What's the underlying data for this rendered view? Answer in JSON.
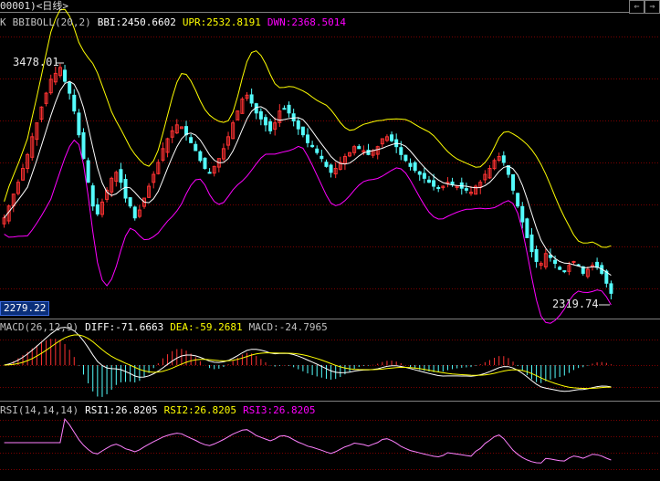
{
  "window": {
    "title": "00001)<日线>"
  },
  "nav_buttons": [
    {
      "label": "⇐",
      "icon": "arrow-left-icon"
    },
    {
      "label": "⇒",
      "icon": "arrow-right-icon"
    }
  ],
  "boll_panel": {
    "prefix": "K",
    "name": "BBIBOLL(20,2)",
    "bbi": "BBI:2450.6602",
    "upr": "UPR:2532.8191",
    "dwn": "DWN:2368.5014",
    "high_label": "3478.01",
    "low_label": "2319.74",
    "current_price": "2279.22"
  },
  "macd_panel": {
    "name": "MACD(26,12,9)",
    "diff": "DIFF:-71.6663",
    "dea": "DEA:-59.2681",
    "macd": "MACD:-24.7965"
  },
  "rsi_panel": {
    "name": "RSI(14,14,14)",
    "rsi1": "RSI1:26.8205",
    "rsi2": "RSI2:26.8205",
    "rsi3": "RSI3:26.8205"
  },
  "colors": {
    "up": "#ff3232",
    "down": "#54fcfc",
    "bbi": "#ffffff",
    "upr": "#ffff00",
    "dwn": "#ff00ff",
    "diff": "#ffffff",
    "dea": "#ffff00",
    "rsi": "#ff80ff",
    "grid": "#7a0000"
  },
  "chart_data": {
    "type": "candlestick",
    "title": "00001)<日线>",
    "ylim": [
      2279.22,
      3478.01
    ],
    "close_approx": [
      2700,
      2760,
      2820,
      2880,
      2950,
      3020,
      3110,
      3180,
      3260,
      3330,
      3400,
      3430,
      3460,
      3390,
      3330,
      3240,
      3120,
      3000,
      2880,
      2760,
      2720,
      2780,
      2840,
      2900,
      2930,
      2880,
      2800,
      2760,
      2700,
      2740,
      2800,
      2860,
      2920,
      2980,
      3050,
      3100,
      3140,
      3170,
      3160,
      3120,
      3080,
      3040,
      2990,
      2950,
      2930,
      2960,
      3000,
      3050,
      3110,
      3180,
      3240,
      3300,
      3320,
      3280,
      3230,
      3200,
      3170,
      3140,
      3180,
      3240,
      3250,
      3230,
      3190,
      3150,
      3120,
      3080,
      3060,
      3030,
      3000,
      2960,
      2930,
      2950,
      2980,
      3010,
      3030,
      3060,
      3050,
      3040,
      3020,
      3040,
      3060,
      3100,
      3110,
      3090,
      3060,
      3020,
      2990,
      2960,
      2940,
      2920,
      2900,
      2880,
      2860,
      2850,
      2860,
      2880,
      2870,
      2860,
      2850,
      2840,
      2830,
      2860,
      2880,
      2920,
      2950,
      2990,
      3010,
      2980,
      2920,
      2840,
      2760,
      2680,
      2600,
      2530,
      2480,
      2470,
      2520,
      2500,
      2470,
      2440,
      2430,
      2460,
      2480,
      2460,
      2420,
      2440,
      2460,
      2450,
      2420,
      2370,
      2319
    ]
  }
}
